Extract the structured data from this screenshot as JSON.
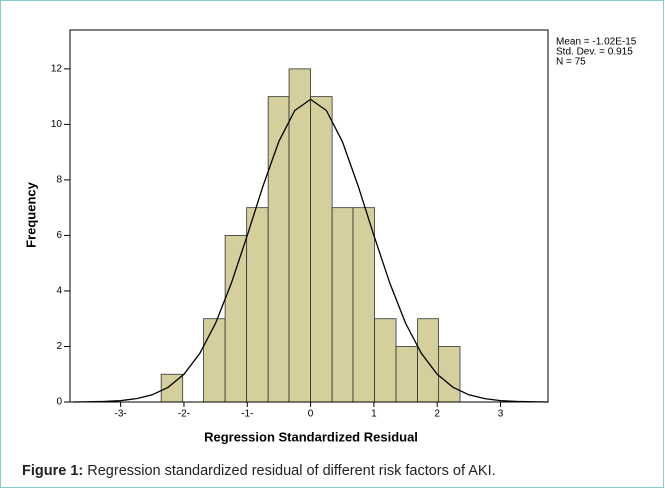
{
  "chart_data": {
    "type": "histogram",
    "bins": [
      -2.36,
      -2.02,
      -1.69,
      -1.35,
      -1.01,
      -0.67,
      -0.34,
      0,
      0.34,
      0.67,
      1.01,
      1.35,
      1.69,
      2.02,
      2.36
    ],
    "values": [
      1,
      0,
      3,
      6,
      7,
      11,
      12,
      11,
      7,
      7,
      3,
      2,
      3,
      2
    ],
    "color": "#d4cf9c",
    "edge_color": "#333333",
    "curve": {
      "x": [
        -3.75,
        -3.5,
        -3.25,
        -3,
        -2.75,
        -2.5,
        -2.25,
        -2,
        -1.75,
        -1.5,
        -1.25,
        -1,
        -0.75,
        -0.5,
        -0.25,
        0,
        0.25,
        0.5,
        0.75,
        1,
        1.25,
        1.5,
        1.75,
        2,
        2.25,
        2.5,
        2.75,
        3,
        3.25,
        3.5,
        3.75
      ],
      "values": [
        0,
        0.01,
        0.02,
        0.05,
        0.12,
        0.26,
        0.53,
        1.0,
        1.75,
        2.84,
        4.29,
        6.0,
        7.79,
        9.39,
        10.5,
        10.9,
        10.5,
        9.39,
        7.79,
        6.0,
        4.29,
        2.84,
        1.75,
        1.0,
        0.53,
        0.26,
        0.12,
        0.05,
        0.02,
        0.01,
        0
      ],
      "color": "#000000"
    },
    "xlim": [
      -3.8,
      3.75
    ],
    "ylim": [
      0,
      13.4
    ],
    "xticks": [
      {
        "value": -3,
        "label": "-3-"
      },
      {
        "value": -2,
        "label": "-2-"
      },
      {
        "value": -1,
        "label": "-1-"
      },
      0,
      1,
      2,
      3
    ],
    "yticks": [
      0,
      2,
      4,
      6,
      8,
      10,
      12
    ],
    "x_label": "Regression Standardized Residual",
    "y_label": "Frequency",
    "stats": [
      "Mean = -1.02E-15",
      "Std. Dev. = 0.915",
      "N = 75"
    ]
  },
  "caption": {
    "label": "Figure 1:",
    "text": " Regression standardized residual of different risk factors of AKI."
  }
}
